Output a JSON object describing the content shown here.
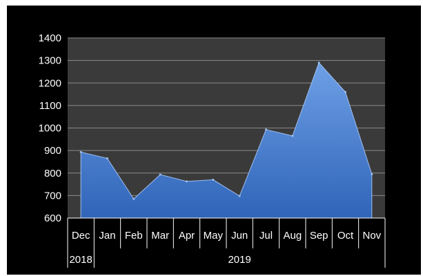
{
  "chart_data": {
    "type": "area",
    "title": "",
    "xlabel": "",
    "ylabel": "",
    "ylim": [
      600,
      1400
    ],
    "yticks": [
      600,
      700,
      800,
      900,
      1000,
      1100,
      1200,
      1300,
      1400
    ],
    "categories": [
      "Dec",
      "Jan",
      "Feb",
      "Mar",
      "Apr",
      "May",
      "Jun",
      "Jul",
      "Aug",
      "Sep",
      "Oct",
      "Nov"
    ],
    "year_groups": [
      {
        "label": "2018",
        "span": 1
      },
      {
        "label": "2019",
        "span": 11
      }
    ],
    "values": [
      893,
      865,
      685,
      793,
      763,
      770,
      698,
      993,
      965,
      1290,
      1160,
      795
    ],
    "grid": true,
    "legend": "none",
    "colors": {
      "background": "#000000",
      "plot_background": "#3a3a3a",
      "area_top": "#6ea0e6",
      "area_bottom": "#2f64b8",
      "gridline": "#8a8a8a",
      "text": "#ffffff"
    }
  }
}
